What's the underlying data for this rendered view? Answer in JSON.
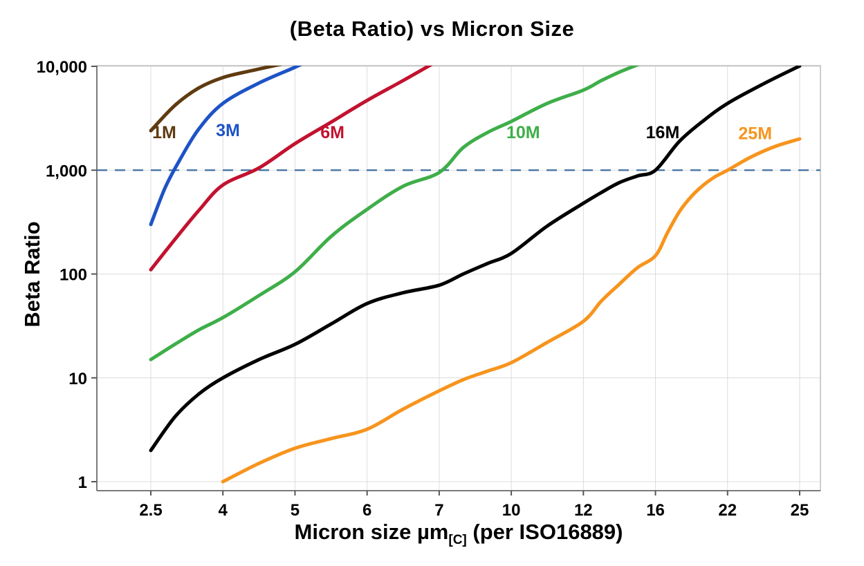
{
  "page": {
    "background": "#ffffff"
  },
  "chart_data": {
    "type": "line",
    "title": "(Beta Ratio) vs Micron Size",
    "ylabel": "Beta Ratio",
    "xlabel": {
      "main": "Micron size µm",
      "subscript": "[C]",
      "suffix": " (per ISO16889)"
    },
    "y_scale": "log",
    "ylim": [
      1,
      10000
    ],
    "x_ticks": [
      2.5,
      4,
      5,
      6,
      7,
      10,
      12,
      16,
      22,
      25
    ],
    "x_tick_labels": [
      "2.5",
      "4",
      "5",
      "6",
      "7",
      "10",
      "12",
      "16",
      "22",
      "25"
    ],
    "y_ticks": [
      1,
      10,
      100,
      1000,
      10000
    ],
    "y_tick_labels": [
      "1",
      "10",
      "100",
      "1,000",
      "10,000"
    ],
    "grid": {
      "color": "#DCDCDC",
      "vertical": true,
      "horizontal": true
    },
    "border_color": "#BDBDBD",
    "axis_color": "#7A7A7A",
    "tick_color": "#555555",
    "reference_line": {
      "y": 1000,
      "color": "#3E6E9E",
      "style": "dashed",
      "width": 2.2
    },
    "series": [
      {
        "name": "1M",
        "color": "#5F3B10",
        "label": {
          "x": 2.78,
          "y": 2300
        },
        "points": [
          [
            2.5,
            2400
          ],
          [
            3,
            4200
          ],
          [
            3.5,
            6200
          ],
          [
            4,
            7800
          ],
          [
            4.4,
            9100
          ],
          [
            4.95,
            11000
          ]
        ]
      },
      {
        "name": "3M",
        "color": "#1E53C6",
        "label": {
          "x": 4.07,
          "y": 2400
        },
        "points": [
          [
            2.5,
            300
          ],
          [
            2.8,
            680
          ],
          [
            3.1,
            1250
          ],
          [
            3.5,
            2500
          ],
          [
            4,
            4400
          ],
          [
            4.5,
            6900
          ],
          [
            5,
            9800
          ],
          [
            5.2,
            11500
          ]
        ]
      },
      {
        "name": "6M",
        "color": "#C2122F",
        "label": {
          "x": 5.52,
          "y": 2300
        },
        "points": [
          [
            2.5,
            110
          ],
          [
            3,
            215
          ],
          [
            3.5,
            410
          ],
          [
            4,
            720
          ],
          [
            4.5,
            1050
          ],
          [
            5,
            1800
          ],
          [
            5.5,
            2900
          ],
          [
            6,
            4700
          ],
          [
            6.5,
            7300
          ],
          [
            6.95,
            11000
          ]
        ]
      },
      {
        "name": "10M",
        "color": "#3EAE49",
        "label": {
          "x": 10.33,
          "y": 2300
        },
        "points": [
          [
            2.5,
            15
          ],
          [
            3,
            21
          ],
          [
            3.5,
            29
          ],
          [
            4,
            38
          ],
          [
            4.5,
            62
          ],
          [
            5,
            105
          ],
          [
            5.5,
            230
          ],
          [
            6,
            420
          ],
          [
            6.5,
            700
          ],
          [
            7,
            950
          ],
          [
            8,
            1650
          ],
          [
            9,
            2300
          ],
          [
            10,
            2950
          ],
          [
            11,
            4400
          ],
          [
            12,
            5900
          ],
          [
            13,
            7300
          ],
          [
            14,
            8800
          ],
          [
            15.1,
            10500
          ]
        ]
      },
      {
        "name": "16M",
        "color": "#000000",
        "label": {
          "x": 16.6,
          "y": 2300
        },
        "points": [
          [
            2.5,
            2
          ],
          [
            3,
            4.2
          ],
          [
            3.5,
            7
          ],
          [
            4,
            10
          ],
          [
            4.5,
            15
          ],
          [
            5,
            21
          ],
          [
            5.5,
            33
          ],
          [
            6,
            52
          ],
          [
            6.5,
            66
          ],
          [
            7,
            78
          ],
          [
            8,
            100
          ],
          [
            9,
            126
          ],
          [
            10,
            158
          ],
          [
            11,
            290
          ],
          [
            12,
            480
          ],
          [
            13,
            610
          ],
          [
            14,
            760
          ],
          [
            15,
            880
          ],
          [
            16,
            1000
          ],
          [
            18,
            1900
          ],
          [
            20,
            3000
          ],
          [
            22,
            4400
          ],
          [
            23.5,
            6800
          ],
          [
            25,
            10100
          ]
        ]
      },
      {
        "name": "25M",
        "color": "#F7941D",
        "label": {
          "x": 23.15,
          "y": 2250
        },
        "points": [
          [
            4,
            1
          ],
          [
            4.5,
            1.5
          ],
          [
            5,
            2.1
          ],
          [
            5.5,
            2.6
          ],
          [
            6,
            3.2
          ],
          [
            6.5,
            5
          ],
          [
            7,
            7.5
          ],
          [
            8,
            9.6
          ],
          [
            9,
            11.6
          ],
          [
            10,
            14
          ],
          [
            11,
            22
          ],
          [
            12,
            35
          ],
          [
            13,
            55
          ],
          [
            14,
            80
          ],
          [
            15,
            115
          ],
          [
            16,
            150
          ],
          [
            17,
            250
          ],
          [
            18,
            400
          ],
          [
            19,
            560
          ],
          [
            20,
            720
          ],
          [
            21,
            870
          ],
          [
            22,
            1000
          ],
          [
            23,
            1350
          ],
          [
            24,
            1700
          ],
          [
            25,
            2000
          ]
        ]
      }
    ]
  }
}
